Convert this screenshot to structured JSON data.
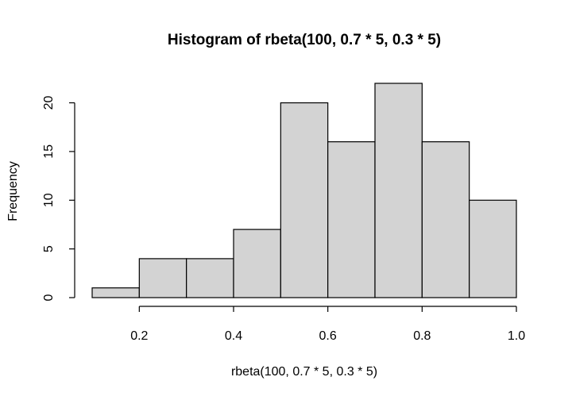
{
  "chart_data": {
    "type": "bar",
    "title": "Histogram of rbeta(100, 0.7 * 5, 0.3 * 5)",
    "xlabel": "rbeta(100, 0.7 * 5, 0.3 * 5)",
    "ylabel": "Frequency",
    "bins": [
      {
        "start": 0.1,
        "end": 0.2,
        "count": 1
      },
      {
        "start": 0.2,
        "end": 0.3,
        "count": 4
      },
      {
        "start": 0.3,
        "end": 0.4,
        "count": 4
      },
      {
        "start": 0.4,
        "end": 0.5,
        "count": 7
      },
      {
        "start": 0.5,
        "end": 0.6,
        "count": 20
      },
      {
        "start": 0.6,
        "end": 0.7,
        "count": 16
      },
      {
        "start": 0.7,
        "end": 0.8,
        "count": 22
      },
      {
        "start": 0.8,
        "end": 0.9,
        "count": 16
      },
      {
        "start": 0.9,
        "end": 1.0,
        "count": 10
      }
    ],
    "xlim": [
      0.1,
      1.0
    ],
    "ylim": [
      0,
      22
    ],
    "x_ticks": [
      {
        "value": 0.2,
        "label": "0.2"
      },
      {
        "value": 0.4,
        "label": "0.4"
      },
      {
        "value": 0.6,
        "label": "0.6"
      },
      {
        "value": 0.8,
        "label": "0.8"
      },
      {
        "value": 1.0,
        "label": "1.0"
      }
    ],
    "y_ticks": [
      {
        "value": 0,
        "label": "0"
      },
      {
        "value": 5,
        "label": "5"
      },
      {
        "value": 10,
        "label": "10"
      },
      {
        "value": 15,
        "label": "15"
      },
      {
        "value": 20,
        "label": "20"
      }
    ],
    "grid": false,
    "colors": {
      "bar_fill": "#d3d3d3",
      "bar_stroke": "#000000"
    }
  }
}
